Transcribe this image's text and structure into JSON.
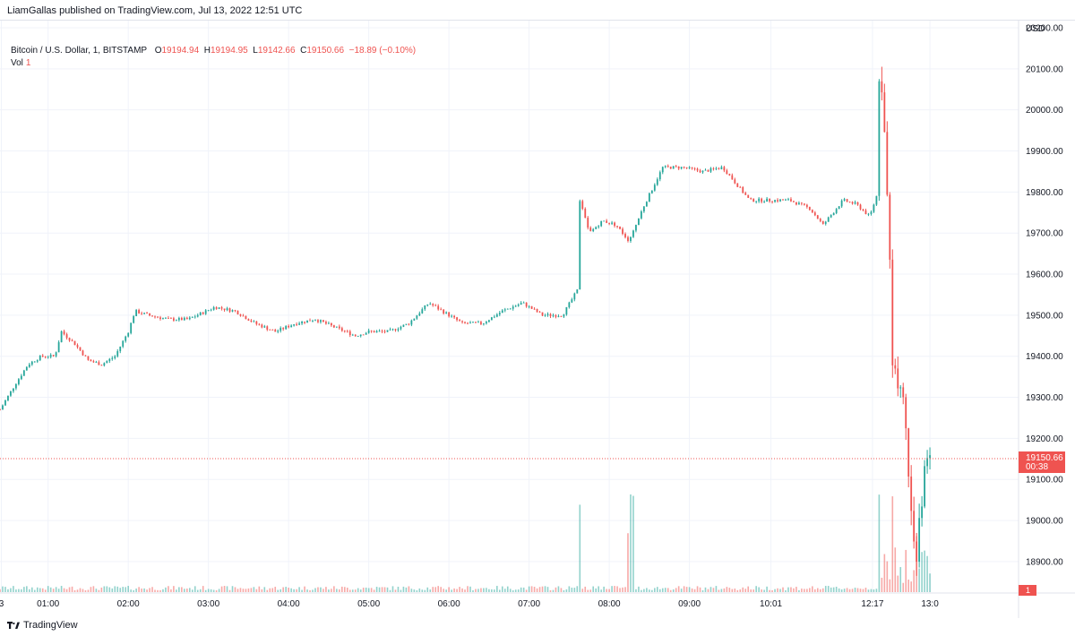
{
  "header": {
    "published_line": "LiamGallas published on TradingView.com, Jul 13, 2022 12:51 UTC"
  },
  "legend": {
    "symbol": "Bitcoin / U.S. Dollar, 1, BITSTAMP",
    "open_label": "O",
    "open": "19194.94",
    "high_label": "H",
    "high": "19194.95",
    "low_label": "L",
    "low": "19142.66",
    "close_label": "C",
    "close": "19150.66",
    "change": "−18.89 (−0.10%)",
    "vol_label": "Vol",
    "vol_value": "1"
  },
  "price_axis": {
    "currency": "USD",
    "ticks": [
      "20200.00",
      "20100.00",
      "20000.00",
      "19900.00",
      "19800.00",
      "19700.00",
      "19600.00",
      "19500.00",
      "19400.00",
      "19300.00",
      "19200.00",
      "19100.00",
      "19000.00",
      "18900.00"
    ],
    "last_price": "19150.66",
    "countdown": "00:38",
    "volume_badge": "1"
  },
  "time_axis": {
    "ticks": [
      "3",
      "01:00",
      "02:00",
      "03:00",
      "04:00",
      "05:00",
      "06:00",
      "07:00",
      "08:00",
      "09:00",
      "10:01",
      "12:17",
      "13:0"
    ]
  },
  "footer": {
    "brand": "TradingView"
  },
  "colors": {
    "up": "#26a69a",
    "down": "#ef5350",
    "grid": "#f0f3fa",
    "axis_text": "#131722",
    "price_line": "#ef5350"
  },
  "chart_data": {
    "type": "candlestick",
    "symbol": "Bitcoin / U.S. Dollar",
    "interval": "1",
    "exchange": "BITSTAMP",
    "y_range": [
      18830,
      20200
    ],
    "x_range": [
      "00:24",
      "13:05"
    ],
    "grid": true,
    "price_path": [
      [
        "00:24",
        19270
      ],
      [
        "00:35",
        19330
      ],
      [
        "00:45",
        19380
      ],
      [
        "00:55",
        19400
      ],
      [
        "01:05",
        19400
      ],
      [
        "01:10",
        19460
      ],
      [
        "01:20",
        19430
      ],
      [
        "01:30",
        19390
      ],
      [
        "01:40",
        19380
      ],
      [
        "01:50",
        19400
      ],
      [
        "02:00",
        19460
      ],
      [
        "02:05",
        19510
      ],
      [
        "02:15",
        19500
      ],
      [
        "02:30",
        19490
      ],
      [
        "02:45",
        19490
      ],
      [
        "03:05",
        19520
      ],
      [
        "03:20",
        19510
      ],
      [
        "03:35",
        19480
      ],
      [
        "03:50",
        19460
      ],
      [
        "04:05",
        19480
      ],
      [
        "04:20",
        19490
      ],
      [
        "04:35",
        19470
      ],
      [
        "04:50",
        19450
      ],
      [
        "05:00",
        19460
      ],
      [
        "05:15",
        19460
      ],
      [
        "05:30",
        19480
      ],
      [
        "05:45",
        19530
      ],
      [
        "06:00",
        19500
      ],
      [
        "06:10",
        19480
      ],
      [
        "06:25",
        19480
      ],
      [
        "06:40",
        19510
      ],
      [
        "06:55",
        19530
      ],
      [
        "07:10",
        19500
      ],
      [
        "07:25",
        19500
      ],
      [
        "07:36",
        19560
      ],
      [
        "07:38",
        19780
      ],
      [
        "07:45",
        19700
      ],
      [
        "07:55",
        19730
      ],
      [
        "08:05",
        19720
      ],
      [
        "08:15",
        19680
      ],
      [
        "08:25",
        19760
      ],
      [
        "08:40",
        19860
      ],
      [
        "08:55",
        19860
      ],
      [
        "09:10",
        19850
      ],
      [
        "09:25",
        19860
      ],
      [
        "09:35",
        19820
      ],
      [
        "09:45",
        19780
      ],
      [
        "10:00",
        19780
      ],
      [
        "10:15",
        19780
      ],
      [
        "10:30",
        19760
      ],
      [
        "10:40",
        19720
      ],
      [
        "10:55",
        19780
      ],
      [
        "11:05",
        19770
      ],
      [
        "11:15",
        19740
      ],
      [
        "11:20",
        19790
      ],
      [
        "11:22",
        20090
      ],
      [
        "11:25",
        20000
      ],
      [
        "11:28",
        19820
      ],
      [
        "11:32",
        19400
      ],
      [
        "11:40",
        19300
      ],
      [
        "11:46",
        19050
      ],
      [
        "11:50",
        18900
      ],
      [
        "11:55",
        19100
      ],
      [
        "12:00",
        19150
      ]
    ],
    "volume_spikes": [
      {
        "time": "07:38",
        "volume": "high"
      },
      {
        "time": "08:14",
        "volume": "medium"
      },
      {
        "time": "08:17",
        "volume": "high"
      },
      {
        "time": "11:22",
        "volume": "high"
      },
      {
        "time": "11:32",
        "volume": "high"
      },
      {
        "time": "11:50",
        "volume": "medium"
      }
    ],
    "last_price": 19150.66
  }
}
